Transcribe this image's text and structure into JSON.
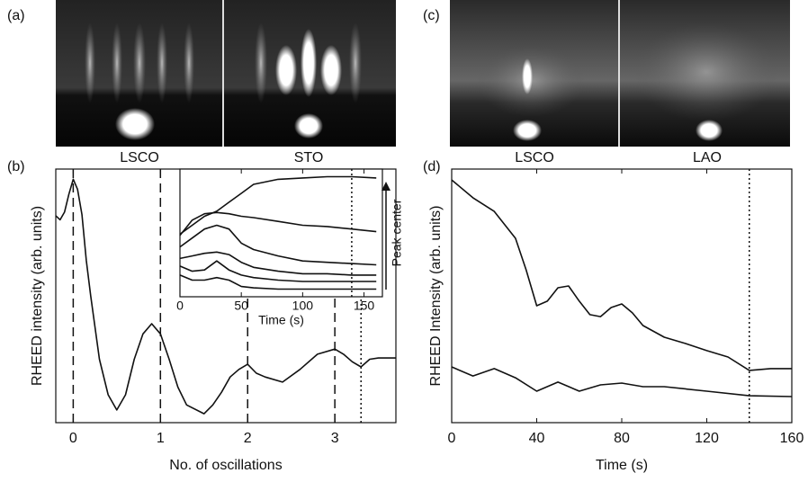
{
  "figure_a": {
    "label": "(a)",
    "images": [
      "LSCO",
      "STO"
    ]
  },
  "figure_c": {
    "label": "(c)",
    "images": [
      "LSCO",
      "LAO"
    ]
  },
  "chart_data": [
    {
      "type": "line",
      "label": "(b)",
      "x_label": "No. of oscillations",
      "y_label": "RHEED intensity (arb. units)",
      "xlim": [
        -0.2,
        3.7
      ],
      "xticks": [
        0,
        1,
        2,
        3
      ],
      "ylim": [
        0,
        100
      ],
      "reference_lines": [
        {
          "x": 0,
          "style": "dashed"
        },
        {
          "x": 1,
          "style": "dashed"
        },
        {
          "x": 2,
          "style": "dashed"
        },
        {
          "x": 3,
          "style": "dashed"
        },
        {
          "x": 3.3,
          "style": "dotted"
        }
      ],
      "series": [
        {
          "color": "#111111",
          "x": [
            -0.2,
            -0.15,
            -0.1,
            -0.05,
            0,
            0.05,
            0.1,
            0.15,
            0.2,
            0.3,
            0.4,
            0.5,
            0.6,
            0.7,
            0.8,
            0.9,
            1.0,
            1.1,
            1.2,
            1.3,
            1.5,
            1.6,
            1.7,
            1.8,
            1.9,
            2.0,
            2.1,
            2.2,
            2.4,
            2.6,
            2.8,
            3.0,
            3.1,
            3.2,
            3.3,
            3.4,
            3.5,
            3.7
          ],
          "values": [
            81.6,
            80,
            83,
            90,
            96,
            92,
            82,
            64,
            50,
            25,
            11,
            5,
            11,
            25,
            35,
            39,
            35,
            25,
            14,
            7,
            3.5,
            7,
            12,
            18,
            21,
            23,
            19.5,
            18,
            16,
            21,
            27,
            29,
            27,
            24,
            22,
            25,
            25.5,
            25.5
          ]
        }
      ]
    },
    {
      "type": "line",
      "x_label": "Time (s)",
      "annotation": "Peak center",
      "xlim": [
        0,
        165
      ],
      "xticks": [
        0,
        50,
        100,
        150
      ],
      "ylim": [
        0,
        100
      ],
      "reference_lines": [
        {
          "x": 140,
          "style": "dotted"
        }
      ],
      "x": [
        0,
        10,
        20,
        30,
        40,
        50,
        60,
        80,
        100,
        120,
        140,
        160
      ],
      "series": [
        {
          "color": "#111111",
          "values": [
            49,
            56,
            63,
            67,
            74,
            81,
            88,
            92,
            93,
            94,
            94,
            93
          ]
        },
        {
          "color": "#111111",
          "values": [
            48,
            60,
            65,
            66,
            65,
            63,
            62,
            59,
            56,
            55,
            53,
            51
          ]
        },
        {
          "color": "#111111",
          "values": [
            39,
            46,
            53,
            56,
            53,
            42,
            37,
            32,
            28,
            27,
            26,
            25
          ]
        },
        {
          "color": "#111111",
          "values": [
            30,
            32,
            34,
            35,
            33,
            27,
            23,
            20,
            18,
            18,
            17,
            17
          ]
        },
        {
          "color": "#111111",
          "values": [
            24,
            20,
            21,
            28,
            21,
            17,
            15,
            13,
            12,
            12,
            12,
            12
          ]
        },
        {
          "color": "#111111",
          "values": [
            17,
            13,
            13,
            15,
            13,
            8,
            7,
            6,
            6,
            6,
            6,
            6
          ]
        }
      ]
    },
    {
      "type": "line",
      "label": "(d)",
      "x_label": "Time (s)",
      "y_label": "RHEED Intensity (arb. units)",
      "xlim": [
        0,
        160
      ],
      "xticks": [
        0,
        40,
        80,
        120,
        160
      ],
      "ylim": [
        0,
        100
      ],
      "reference_lines": [
        {
          "x": 140,
          "style": "dotted"
        }
      ],
      "series": [
        {
          "color": "#111111",
          "x": [
            0,
            10,
            20,
            30,
            35,
            40,
            45,
            50,
            55,
            60,
            65,
            70,
            75,
            80,
            85,
            90,
            100,
            110,
            120,
            130,
            140,
            150,
            160
          ],
          "values": [
            95.7,
            88.7,
            83.3,
            72.7,
            60.3,
            46.1,
            47.9,
            53.2,
            53.9,
            47.9,
            42.6,
            41.8,
            45.4,
            46.8,
            43.3,
            38.3,
            33.7,
            31.2,
            28.4,
            25.9,
            20.6,
            21.3,
            21.3
          ]
        },
        {
          "color": "#111111",
          "x": [
            0,
            10,
            20,
            30,
            40,
            50,
            60,
            70,
            80,
            90,
            100,
            120,
            140,
            160
          ],
          "values": [
            22,
            18.4,
            21.3,
            17.7,
            12.4,
            16,
            12.4,
            14.9,
            15.6,
            14.2,
            14.2,
            12.4,
            10.6,
            10.3
          ]
        }
      ]
    }
  ]
}
